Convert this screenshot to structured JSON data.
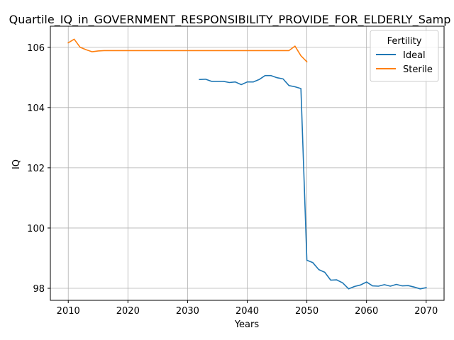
{
  "chart_data": {
    "type": "line",
    "title": "Quartile_IQ_in_GOVERNMENT_RESPONSIBILITY_PROVIDE_FOR_ELDERLY_Samp",
    "xlabel": "Years",
    "ylabel": "IQ",
    "xlim": [
      2007,
      2073
    ],
    "ylim": [
      97.6,
      106.7
    ],
    "xticks": [
      2010,
      2020,
      2030,
      2040,
      2050,
      2060,
      2070
    ],
    "yticks": [
      98,
      100,
      102,
      104,
      106
    ],
    "grid": true,
    "legend": {
      "title": "Fertility",
      "placement": "top-right"
    },
    "series": [
      {
        "name": "Ideal",
        "color": "#1f77b4",
        "x": [
          2032,
          2033,
          2034,
          2035,
          2036,
          2037,
          2038,
          2039,
          2040,
          2041,
          2042,
          2043,
          2044,
          2045,
          2046,
          2047,
          2048,
          2049,
          2050,
          2051,
          2052,
          2053,
          2054,
          2055,
          2056,
          2057,
          2058,
          2059,
          2060,
          2061,
          2062,
          2063,
          2064,
          2065,
          2066,
          2067,
          2068,
          2069,
          2070
        ],
        "y": [
          104.93,
          104.94,
          104.87,
          104.87,
          104.87,
          104.83,
          104.85,
          104.76,
          104.85,
          104.85,
          104.93,
          105.06,
          105.06,
          104.99,
          104.95,
          104.73,
          104.69,
          104.63,
          98.93,
          98.85,
          98.62,
          98.53,
          98.27,
          98.28,
          98.18,
          97.98,
          98.06,
          98.11,
          98.21,
          98.08,
          98.07,
          98.12,
          98.07,
          98.13,
          98.08,
          98.09,
          98.04,
          97.98,
          98.02
        ]
      },
      {
        "name": "Sterile",
        "color": "#ff7f0e",
        "x": [
          2010,
          2011,
          2012,
          2013,
          2014,
          2015,
          2016,
          2017,
          2018,
          2019,
          2020,
          2021,
          2022,
          2023,
          2024,
          2025,
          2026,
          2027,
          2028,
          2029,
          2030,
          2031,
          2032,
          2033,
          2034,
          2035,
          2036,
          2037,
          2038,
          2039,
          2040,
          2041,
          2042,
          2043,
          2044,
          2045,
          2046,
          2047,
          2048,
          2049,
          2050
        ],
        "y": [
          106.15,
          106.27,
          106.0,
          105.92,
          105.85,
          105.88,
          105.89,
          105.89,
          105.89,
          105.89,
          105.89,
          105.89,
          105.89,
          105.89,
          105.89,
          105.89,
          105.89,
          105.89,
          105.89,
          105.89,
          105.89,
          105.89,
          105.89,
          105.89,
          105.89,
          105.89,
          105.89,
          105.89,
          105.89,
          105.89,
          105.89,
          105.89,
          105.89,
          105.89,
          105.89,
          105.89,
          105.89,
          105.89,
          106.04,
          105.72,
          105.52
        ]
      }
    ]
  }
}
